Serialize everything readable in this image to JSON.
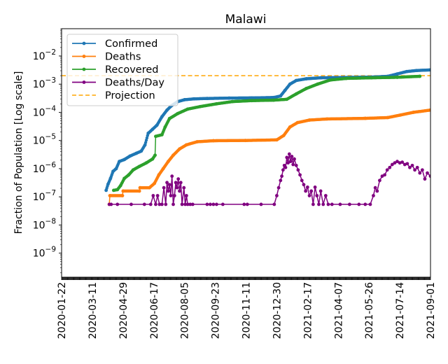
{
  "chart_data": {
    "type": "line",
    "title": "Malawi",
    "xlabel": "",
    "ylabel": "Fraction of Population [Log scale]",
    "yscale": "log",
    "ylim": [
      1.4e-10,
      0.093
    ],
    "xlim": [
      "2020-01-22",
      "2021-09-01"
    ],
    "x_ticks": [
      "2020-01-22",
      "2020-03-11",
      "2020-04-29",
      "2020-06-17",
      "2020-08-05",
      "2020-09-23",
      "2020-11-11",
      "2020-12-30",
      "2021-02-17",
      "2021-04-07",
      "2021-05-26",
      "2021-07-14",
      "2021-09-01"
    ],
    "y_ticks": [
      {
        "value": 1e-09,
        "label": "10",
        "exp": "−9"
      },
      {
        "value": 1e-08,
        "label": "10",
        "exp": "−8"
      },
      {
        "value": 1e-07,
        "label": "10",
        "exp": "−7"
      },
      {
        "value": 1e-06,
        "label": "10",
        "exp": "−6"
      },
      {
        "value": 1e-05,
        "label": "10",
        "exp": "−5"
      },
      {
        "value": 0.0001,
        "label": "10",
        "exp": "−4"
      },
      {
        "value": 0.001,
        "label": "10",
        "exp": "−3"
      },
      {
        "value": 0.01,
        "label": "10",
        "exp": "−2"
      }
    ],
    "legend": {
      "position": "upper-left",
      "entries": [
        {
          "label": "Confirmed",
          "color": "#1f77b4",
          "style": "line-marker"
        },
        {
          "label": "Deaths",
          "color": "#ff7f0e",
          "style": "line-marker"
        },
        {
          "label": "Recovered",
          "color": "#2ca02c",
          "style": "line-marker"
        },
        {
          "label": "Deaths/Day",
          "color": "#800080",
          "style": "line-marker"
        },
        {
          "label": "Projection",
          "color": "#ffa500",
          "style": "dashed"
        }
      ]
    },
    "projection": {
      "name": "Projection",
      "value": 0.002,
      "color": "#ffa500"
    },
    "series": [
      {
        "name": "Confirmed",
        "color": "#1f77b4",
        "points": [
          [
            "2020-04-02",
            1.7e-07
          ],
          [
            "2020-04-05",
            2.8e-07
          ],
          [
            "2020-04-09",
            4.5e-07
          ],
          [
            "2020-04-13",
            8e-07
          ],
          [
            "2020-04-18",
            1e-06
          ],
          [
            "2020-04-23",
            1.8e-06
          ],
          [
            "2020-05-01",
            2.1e-06
          ],
          [
            "2020-05-10",
            2.8e-06
          ],
          [
            "2020-05-20",
            3.5e-06
          ],
          [
            "2020-05-28",
            4.2e-06
          ],
          [
            "2020-06-03",
            7e-06
          ],
          [
            "2020-06-08",
            1.8e-05
          ],
          [
            "2020-06-15",
            2.5e-05
          ],
          [
            "2020-06-22",
            3.5e-05
          ],
          [
            "2020-06-30",
            7e-05
          ],
          [
            "2020-07-08",
            0.00012
          ],
          [
            "2020-07-15",
            0.00017
          ],
          [
            "2020-07-25",
            0.00024
          ],
          [
            "2020-08-05",
            0.00028
          ],
          [
            "2020-08-20",
            0.0003
          ],
          [
            "2020-09-10",
            0.00031
          ],
          [
            "2020-10-15",
            0.00032
          ],
          [
            "2020-11-20",
            0.000325
          ],
          [
            "2020-12-25",
            0.000335
          ],
          [
            "2021-01-05",
            0.00038
          ],
          [
            "2021-01-12",
            0.0006
          ],
          [
            "2021-01-20",
            0.001
          ],
          [
            "2021-01-30",
            0.00135
          ],
          [
            "2021-02-15",
            0.00155
          ],
          [
            "2021-03-10",
            0.00168
          ],
          [
            "2021-04-15",
            0.00173
          ],
          [
            "2021-05-30",
            0.00178
          ],
          [
            "2021-06-25",
            0.0019
          ],
          [
            "2021-07-10",
            0.0023
          ],
          [
            "2021-07-25",
            0.0028
          ],
          [
            "2021-08-10",
            0.00305
          ],
          [
            "2021-09-01",
            0.0032
          ]
        ]
      },
      {
        "name": "Recovered",
        "color": "#2ca02c",
        "points": [
          [
            "2020-04-14",
            1.7e-07
          ],
          [
            "2020-04-20",
            1.8e-07
          ],
          [
            "2020-04-25",
            2.5e-07
          ],
          [
            "2020-05-01",
            4.5e-07
          ],
          [
            "2020-05-08",
            6e-07
          ],
          [
            "2020-05-15",
            9e-07
          ],
          [
            "2020-05-25",
            1.2e-06
          ],
          [
            "2020-06-05",
            1.6e-06
          ],
          [
            "2020-06-15",
            2.2e-06
          ],
          [
            "2020-06-19",
            3e-06
          ],
          [
            "2020-06-20",
            1.4e-05
          ],
          [
            "2020-06-30",
            1.6e-05
          ],
          [
            "2020-07-05",
            3e-05
          ],
          [
            "2020-07-12",
            6e-05
          ],
          [
            "2020-07-25",
            9e-05
          ],
          [
            "2020-08-10",
            0.00013
          ],
          [
            "2020-08-30",
            0.00016
          ],
          [
            "2020-09-25",
            0.0002
          ],
          [
            "2020-10-20",
            0.00024
          ],
          [
            "2020-11-20",
            0.00026
          ],
          [
            "2020-12-25",
            0.00027
          ],
          [
            "2021-01-15",
            0.00029
          ],
          [
            "2021-01-30",
            0.00045
          ],
          [
            "2021-02-15",
            0.0007
          ],
          [
            "2021-03-05",
            0.001
          ],
          [
            "2021-03-25",
            0.0014
          ],
          [
            "2021-04-20",
            0.0016
          ],
          [
            "2021-05-30",
            0.00168
          ],
          [
            "2021-07-10",
            0.00175
          ],
          [
            "2021-08-15",
            0.0019
          ]
        ]
      },
      {
        "name": "Deaths",
        "color": "#ff7f0e",
        "points": [
          [
            "2020-04-07",
            5.4e-08
          ],
          [
            "2020-04-08",
            1.1e-07
          ],
          [
            "2020-04-28",
            1.1e-07
          ],
          [
            "2020-04-29",
            1.6e-07
          ],
          [
            "2020-05-25",
            1.6e-07
          ],
          [
            "2020-05-26",
            2.1e-07
          ],
          [
            "2020-06-10",
            2.1e-07
          ],
          [
            "2020-06-18",
            3e-07
          ],
          [
            "2020-06-25",
            6e-07
          ],
          [
            "2020-07-02",
            1e-06
          ],
          [
            "2020-07-10",
            1.8e-06
          ],
          [
            "2020-07-18",
            3e-06
          ],
          [
            "2020-07-28",
            5e-06
          ],
          [
            "2020-08-08",
            7e-06
          ],
          [
            "2020-08-25",
            9e-06
          ],
          [
            "2020-09-20",
            9.8e-06
          ],
          [
            "2020-11-10",
            1e-05
          ],
          [
            "2020-12-30",
            1.05e-05
          ],
          [
            "2021-01-10",
            1.5e-05
          ],
          [
            "2021-01-20",
            3e-05
          ],
          [
            "2021-02-01",
            4.3e-05
          ],
          [
            "2021-02-20",
            5.3e-05
          ],
          [
            "2021-03-20",
            5.8e-05
          ],
          [
            "2021-05-20",
            6.1e-05
          ],
          [
            "2021-06-25",
            6.5e-05
          ],
          [
            "2021-07-15",
            8e-05
          ],
          [
            "2021-08-05",
            0.0001
          ],
          [
            "2021-09-01",
            0.00012
          ]
        ]
      },
      {
        "name": "Deaths/Day",
        "color": "#800080",
        "points": [
          [
            "2020-04-07",
            5.4e-08
          ],
          [
            "2020-04-10",
            5.4e-08
          ],
          [
            "2020-04-20",
            5.4e-08
          ],
          [
            "2020-05-12",
            5.4e-08
          ],
          [
            "2020-06-02",
            5.4e-08
          ],
          [
            "2020-06-12",
            5.4e-08
          ],
          [
            "2020-06-16",
            1.1e-07
          ],
          [
            "2020-06-20",
            5.4e-08
          ],
          [
            "2020-06-23",
            1.1e-07
          ],
          [
            "2020-06-26",
            5.4e-08
          ],
          [
            "2020-06-30",
            5.4e-08
          ],
          [
            "2020-07-03",
            2.1e-07
          ],
          [
            "2020-07-06",
            5.4e-08
          ],
          [
            "2020-07-08",
            3.2e-07
          ],
          [
            "2020-07-10",
            1.6e-07
          ],
          [
            "2020-07-12",
            2.7e-07
          ],
          [
            "2020-07-14",
            1.1e-07
          ],
          [
            "2020-07-16",
            5.4e-07
          ],
          [
            "2020-07-18",
            5.4e-08
          ],
          [
            "2020-07-20",
            1.1e-07
          ],
          [
            "2020-07-22",
            3.2e-07
          ],
          [
            "2020-07-24",
            2.1e-07
          ],
          [
            "2020-07-26",
            4.3e-07
          ],
          [
            "2020-07-28",
            1.6e-07
          ],
          [
            "2020-07-30",
            3.2e-07
          ],
          [
            "2020-08-01",
            5.4e-08
          ],
          [
            "2020-08-04",
            2.1e-07
          ],
          [
            "2020-08-06",
            5.4e-08
          ],
          [
            "2020-08-08",
            1.1e-07
          ],
          [
            "2020-08-10",
            5.4e-08
          ],
          [
            "2020-08-14",
            5.4e-08
          ],
          [
            "2020-08-18",
            5.4e-08
          ],
          [
            "2020-09-10",
            5.4e-08
          ],
          [
            "2020-09-15",
            5.4e-08
          ],
          [
            "2020-09-20",
            5.4e-08
          ],
          [
            "2020-09-25",
            5.4e-08
          ],
          [
            "2020-10-05",
            5.4e-08
          ],
          [
            "2020-11-08",
            5.4e-08
          ],
          [
            "2020-11-13",
            5.4e-08
          ],
          [
            "2020-12-05",
            5.4e-08
          ],
          [
            "2020-12-26",
            5.4e-08
          ],
          [
            "2020-12-30",
            1.1e-07
          ],
          [
            "2021-01-02",
            2.1e-07
          ],
          [
            "2021-01-05",
            3.8e-07
          ],
          [
            "2021-01-07",
            5.4e-07
          ],
          [
            "2021-01-09",
            9e-07
          ],
          [
            "2021-01-11",
            1.3e-06
          ],
          [
            "2021-01-13",
            1.1e-06
          ],
          [
            "2021-01-15",
            2.5e-06
          ],
          [
            "2021-01-17",
            1.6e-06
          ],
          [
            "2021-01-19",
            3.3e-06
          ],
          [
            "2021-01-21",
            1.8e-06
          ],
          [
            "2021-01-23",
            2.7e-06
          ],
          [
            "2021-01-25",
            1.4e-06
          ],
          [
            "2021-01-27",
            2.2e-06
          ],
          [
            "2021-01-30",
            1.3e-06
          ],
          [
            "2021-02-02",
            9e-07
          ],
          [
            "2021-02-05",
            6e-07
          ],
          [
            "2021-02-08",
            3.8e-07
          ],
          [
            "2021-02-11",
            2.7e-07
          ],
          [
            "2021-02-14",
            1.6e-07
          ],
          [
            "2021-02-17",
            2.2e-07
          ],
          [
            "2021-02-20",
            1.1e-07
          ],
          [
            "2021-02-23",
            1.6e-07
          ],
          [
            "2021-02-26",
            5.4e-08
          ],
          [
            "2021-03-01",
            2.2e-07
          ],
          [
            "2021-03-04",
            1.1e-07
          ],
          [
            "2021-03-07",
            5.4e-08
          ],
          [
            "2021-03-10",
            1.6e-07
          ],
          [
            "2021-03-14",
            5.4e-08
          ],
          [
            "2021-03-18",
            1.1e-07
          ],
          [
            "2021-03-22",
            5.4e-08
          ],
          [
            "2021-03-28",
            5.4e-08
          ],
          [
            "2021-04-10",
            5.4e-08
          ],
          [
            "2021-04-25",
            5.4e-08
          ],
          [
            "2021-05-10",
            5.4e-08
          ],
          [
            "2021-05-20",
            5.4e-08
          ],
          [
            "2021-05-28",
            5.4e-08
          ],
          [
            "2021-06-02",
            1.1e-07
          ],
          [
            "2021-06-05",
            2.1e-07
          ],
          [
            "2021-06-08",
            1.6e-07
          ],
          [
            "2021-06-12",
            3.8e-07
          ],
          [
            "2021-06-16",
            5.4e-07
          ],
          [
            "2021-06-20",
            6e-07
          ],
          [
            "2021-06-24",
            9e-07
          ],
          [
            "2021-06-28",
            1.1e-06
          ],
          [
            "2021-07-02",
            1.4e-06
          ],
          [
            "2021-07-06",
            1.6e-06
          ],
          [
            "2021-07-10",
            1.8e-06
          ],
          [
            "2021-07-14",
            1.6e-06
          ],
          [
            "2021-07-18",
            1.7e-06
          ],
          [
            "2021-07-22",
            1.4e-06
          ],
          [
            "2021-07-26",
            1.5e-06
          ],
          [
            "2021-07-30",
            1.1e-06
          ],
          [
            "2021-08-03",
            1.3e-06
          ],
          [
            "2021-08-07",
            9e-07
          ],
          [
            "2021-08-11",
            1.1e-06
          ],
          [
            "2021-08-15",
            7e-07
          ],
          [
            "2021-08-19",
            9e-07
          ],
          [
            "2021-08-23",
            4.3e-07
          ],
          [
            "2021-08-27",
            7e-07
          ],
          [
            "2021-09-01",
            5.4e-07
          ]
        ]
      }
    ]
  }
}
